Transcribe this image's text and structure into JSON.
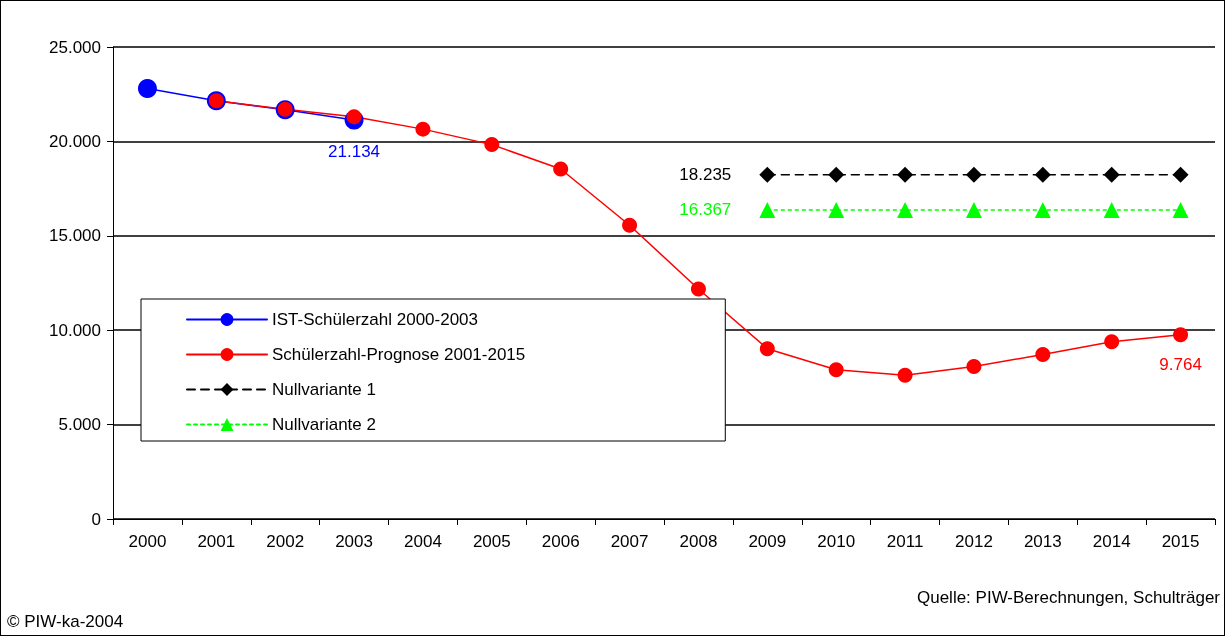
{
  "chart_data": {
    "type": "line",
    "categories": [
      "2000",
      "2001",
      "2002",
      "2003",
      "2004",
      "2005",
      "2006",
      "2007",
      "2008",
      "2009",
      "2010",
      "2011",
      "2012",
      "2013",
      "2014",
      "2015"
    ],
    "series": [
      {
        "name": "IST-Schülerzahl 2000-2003",
        "color": "#0000ff",
        "marker": "circle",
        "line_style": "solid",
        "values": [
          22800,
          22150,
          21680,
          21134,
          null,
          null,
          null,
          null,
          null,
          null,
          null,
          null,
          null,
          null,
          null,
          null
        ],
        "value_labels": [
          null,
          null,
          null,
          "21.134",
          null,
          null,
          null,
          null,
          null,
          null,
          null,
          null,
          null,
          null,
          null,
          null
        ]
      },
      {
        "name": "Schülerzahl-Prognose 2001-2015",
        "color": "#ff0000",
        "marker": "circle",
        "line_style": "solid",
        "values": [
          null,
          22150,
          21700,
          21300,
          20650,
          19830,
          18540,
          15560,
          12180,
          9020,
          7910,
          7620,
          8080,
          8710,
          9390,
          9764
        ],
        "value_labels": [
          null,
          null,
          null,
          null,
          null,
          null,
          null,
          null,
          null,
          null,
          null,
          null,
          null,
          null,
          null,
          "9.764"
        ]
      },
      {
        "name": "Nullvariante 1",
        "color": "#000000",
        "marker": "diamond",
        "line_style": "dashed",
        "values": [
          null,
          null,
          null,
          null,
          null,
          null,
          null,
          null,
          null,
          18235,
          18235,
          18235,
          18235,
          18235,
          18235,
          18235
        ],
        "value_labels": [
          null,
          null,
          null,
          null,
          null,
          null,
          null,
          null,
          null,
          "18.235",
          null,
          null,
          null,
          null,
          null,
          null
        ]
      },
      {
        "name": "Nullvariante 2",
        "color": "#00ff00",
        "marker": "triangle",
        "line_style": "dotted",
        "values": [
          null,
          null,
          null,
          null,
          null,
          null,
          null,
          null,
          null,
          16367,
          16367,
          16367,
          16367,
          16367,
          16367,
          16367
        ],
        "value_labels": [
          null,
          null,
          null,
          null,
          null,
          null,
          null,
          null,
          null,
          "16.367",
          null,
          null,
          null,
          null,
          null,
          null
        ]
      }
    ],
    "ylim": [
      0,
      25000
    ],
    "yticks": [
      {
        "value": 0,
        "label": "0"
      },
      {
        "value": 5000,
        "label": "5.000"
      },
      {
        "value": 10000,
        "label": "10.000"
      },
      {
        "value": 15000,
        "label": "15.000"
      },
      {
        "value": 20000,
        "label": "20.000"
      },
      {
        "value": 25000,
        "label": "25.000"
      }
    ],
    "grid": "y",
    "legend": "left",
    "annotations": [
      "Quelle: PIW-Berechnungen, Schulträger",
      "© PIW-ka-2004"
    ]
  }
}
